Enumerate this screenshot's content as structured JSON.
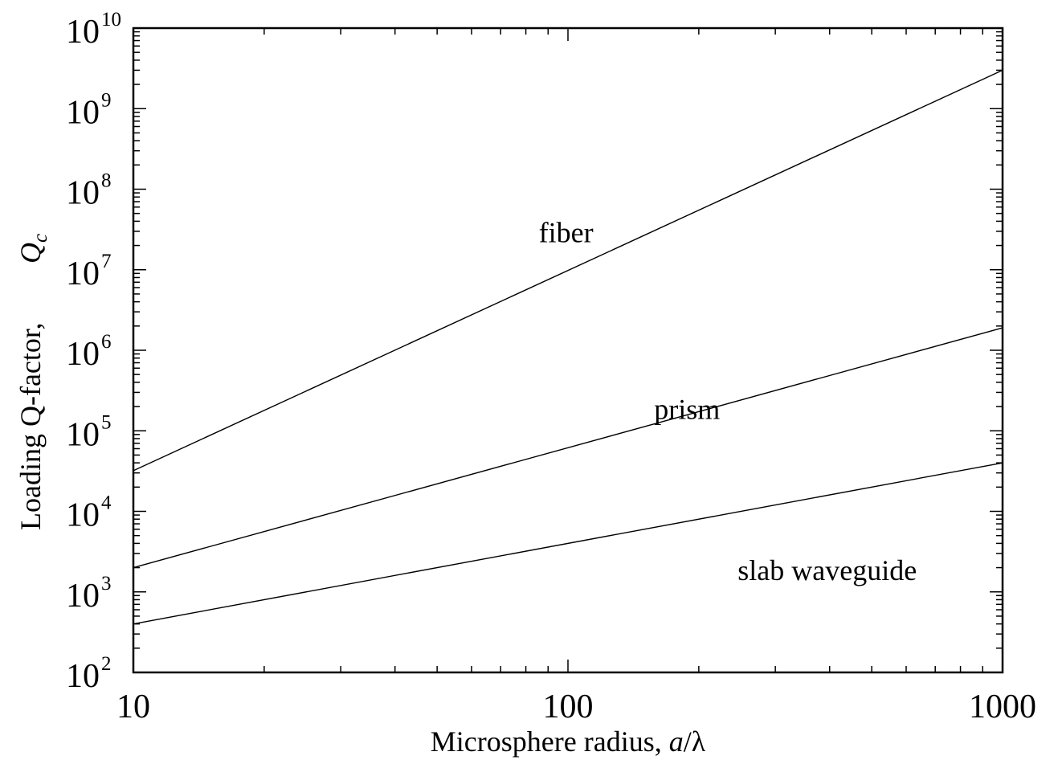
{
  "chart_data": {
    "type": "line",
    "title": "",
    "xlabel_prefix": "Microsphere radius, ",
    "xlabel_var": "a",
    "xlabel_suffix": "/λ",
    "ylabel_text": "Loading Q-factor,",
    "ylabel_var": "Q",
    "ylabel_sub": "c",
    "x_scale": "log",
    "y_scale": "log",
    "xlim": [
      10,
      1000
    ],
    "ylim": [
      100,
      10000000000
    ],
    "x_ticks": [
      {
        "value": 10,
        "label": "10"
      },
      {
        "value": 100,
        "label": "100"
      },
      {
        "value": 1000,
        "label": "1000"
      }
    ],
    "y_ticks": [
      {
        "value": 100,
        "base": "10",
        "exp": "2"
      },
      {
        "value": 1000,
        "base": "10",
        "exp": "3"
      },
      {
        "value": 10000,
        "base": "10",
        "exp": "4"
      },
      {
        "value": 100000,
        "base": "10",
        "exp": "5"
      },
      {
        "value": 1000000,
        "base": "10",
        "exp": "6"
      },
      {
        "value": 10000000,
        "base": "10",
        "exp": "7"
      },
      {
        "value": 100000000,
        "base": "10",
        "exp": "8"
      },
      {
        "value": 1000000000,
        "base": "10",
        "exp": "9"
      },
      {
        "value": 10000000000,
        "base": "10",
        "exp": "10"
      }
    ],
    "grid": false,
    "legend": "none",
    "series": [
      {
        "name": "fiber",
        "x": [
          10,
          1000
        ],
        "y": [
          32000,
          3000000000
        ],
        "label_at": [
          99,
          22000000
        ]
      },
      {
        "name": "prism",
        "x": [
          10,
          1000
        ],
        "y": [
          2000,
          1900000
        ],
        "label_at": [
          188,
          140000
        ]
      },
      {
        "name": "slab waveguide",
        "x": [
          10,
          1000
        ],
        "y": [
          400,
          40000
        ],
        "label_at": [
          395,
          1400
        ]
      }
    ]
  }
}
